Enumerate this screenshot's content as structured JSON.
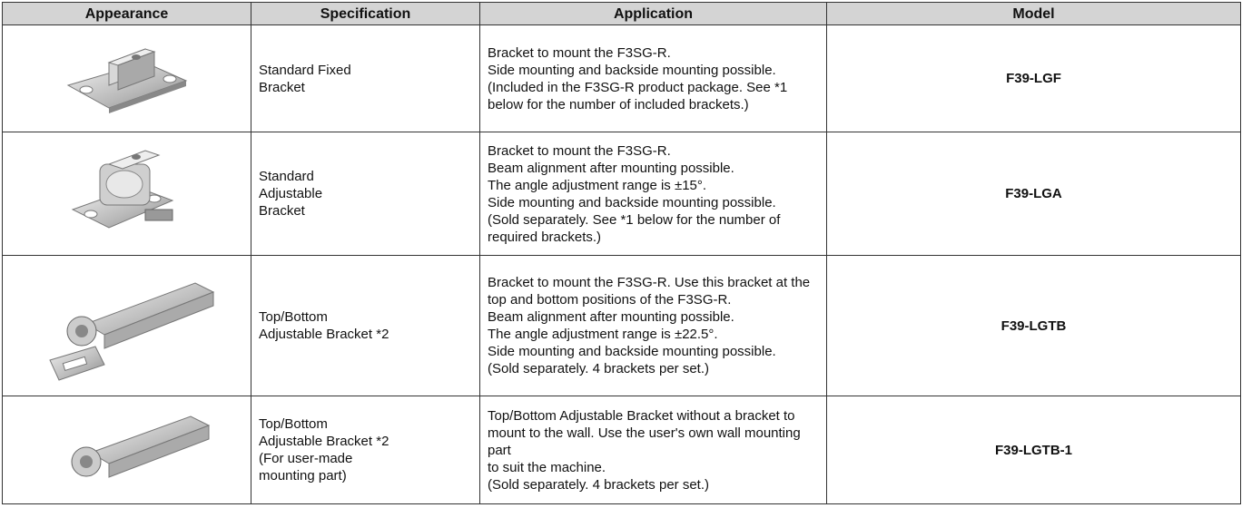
{
  "table": {
    "headers": [
      "Appearance",
      "Specification",
      "Application",
      "Model"
    ],
    "rows": [
      {
        "specification": [
          "Standard Fixed",
          "Bracket"
        ],
        "application": [
          "Bracket to mount the F3SG-R.",
          "Side mounting and backside mounting possible.",
          "(Included in the F3SG-R product package. See *1",
          "below for the number of included brackets.)"
        ],
        "model": "F39-LGF"
      },
      {
        "specification": [
          "Standard",
          "Adjustable",
          "Bracket"
        ],
        "application": [
          "Bracket to mount the F3SG-R.",
          "Beam alignment after mounting possible.",
          "The angle adjustment range is ±15°.",
          "Side mounting and backside mounting possible.",
          "(Sold separately. See *1 below for the number of",
          "required brackets.)"
        ],
        "model": "F39-LGA"
      },
      {
        "specification": [
          "Top/Bottom",
          "Adjustable Bracket *2"
        ],
        "application": [
          "Bracket to mount the F3SG-R. Use this bracket at the",
          "top and bottom positions of the F3SG-R.",
          "Beam alignment after mounting possible.",
          "The angle adjustment range is ±22.5°.",
          "Side mounting and backside mounting possible.",
          "(Sold separately. 4 brackets per set.)"
        ],
        "model": "F39-LGTB"
      },
      {
        "specification": [
          "Top/Bottom",
          "Adjustable Bracket *2",
          "(For user-made",
          "mounting part)"
        ],
        "application": [
          "Top/Bottom Adjustable Bracket without a bracket to",
          "mount to the wall. Use the user's own wall mounting part",
          "to suit the machine.",
          "(Sold separately. 4 brackets per set.)"
        ],
        "model": "F39-LGTB-1"
      }
    ]
  }
}
